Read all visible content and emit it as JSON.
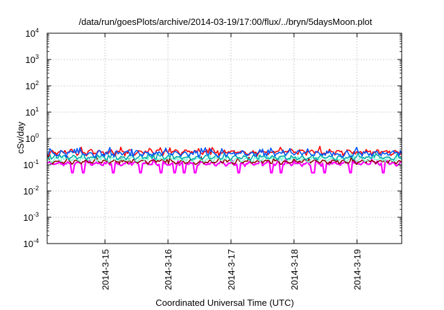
{
  "chart_data": {
    "type": "line",
    "title": "/data/run/goesPlots/archive/2014-03-19/17:00/flux/../bryn/5daysMoon.plot",
    "xlabel": "Coordinated Universal Time (UTC)",
    "ylabel": "cSv/day",
    "y_scale": "log",
    "ylim": [
      0.0001,
      10000
    ],
    "y_ticks": [
      {
        "value": 0.0001,
        "base": "10",
        "exp": "-4"
      },
      {
        "value": 0.001,
        "base": "10",
        "exp": "-3"
      },
      {
        "value": 0.01,
        "base": "10",
        "exp": "-2"
      },
      {
        "value": 0.1,
        "base": "10",
        "exp": "-1"
      },
      {
        "value": 1,
        "base": "10",
        "exp": "0"
      },
      {
        "value": 10,
        "base": "10",
        "exp": "1"
      },
      {
        "value": 100,
        "base": "10",
        "exp": "2"
      },
      {
        "value": 1000,
        "base": "10",
        "exp": "3"
      },
      {
        "value": 10000,
        "base": "10",
        "exp": "4"
      }
    ],
    "xlim": [
      "2014-03-14T02:00",
      "2014-03-19T17:00"
    ],
    "x_ticks": [
      {
        "value": "2014-03-15T00:00",
        "label": "2014-3-15"
      },
      {
        "value": "2014-03-16T00:00",
        "label": "2014-3-16"
      },
      {
        "value": "2014-03-17T00:00",
        "label": "2014-3-17"
      },
      {
        "value": "2014-03-18T00:00",
        "label": "2014-3-18"
      },
      {
        "value": "2014-03-19T00:00",
        "label": "2014-3-19"
      }
    ],
    "grid": true,
    "legend": "none",
    "series": [
      {
        "color": "#ff00ff",
        "base": 0.11,
        "amp": 0.1,
        "dips": true
      },
      {
        "color": "#880000",
        "base": 0.13,
        "amp": 0.1,
        "dips": false
      },
      {
        "color": "#7fffd4",
        "base": 0.16,
        "amp": 0.12,
        "dips": false
      },
      {
        "color": "#00aaaa",
        "base": 0.19,
        "amp": 0.12,
        "dips": false
      },
      {
        "color": "#ff0000",
        "base": 0.3,
        "amp": 0.18,
        "dips": false
      },
      {
        "color": "#0055ff",
        "base": 0.27,
        "amp": 0.18,
        "dips": false
      }
    ]
  }
}
